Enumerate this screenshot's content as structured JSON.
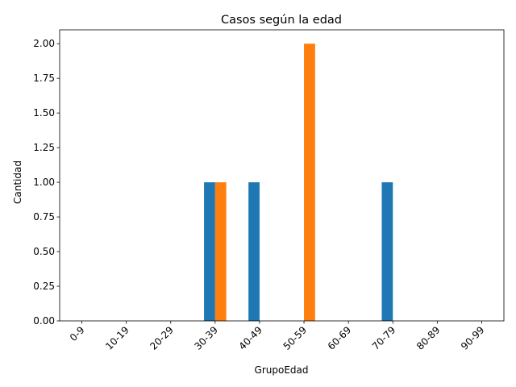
{
  "chart_data": {
    "type": "bar",
    "title": "Casos según la edad",
    "xlabel": "GrupoEdad",
    "ylabel": "Cantidad",
    "categories": [
      "0-9",
      "10-19",
      "20-29",
      "30-39",
      "40-49",
      "50-59",
      "60-69",
      "70-79",
      "80-89",
      "90-99"
    ],
    "series": [
      {
        "values": [
          0,
          0,
          0,
          1,
          1,
          0,
          0,
          1,
          0,
          0
        ],
        "color": "#1f77b4"
      },
      {
        "values": [
          0,
          0,
          0,
          1,
          0,
          2,
          0,
          0,
          0,
          0
        ],
        "color": "#ff7f0e"
      }
    ],
    "ylim": [
      0,
      2.1
    ],
    "yticks": [
      "0.00",
      "0.25",
      "0.50",
      "0.75",
      "1.00",
      "1.25",
      "1.50",
      "1.75",
      "2.00"
    ],
    "legend": "none",
    "grid": false
  }
}
